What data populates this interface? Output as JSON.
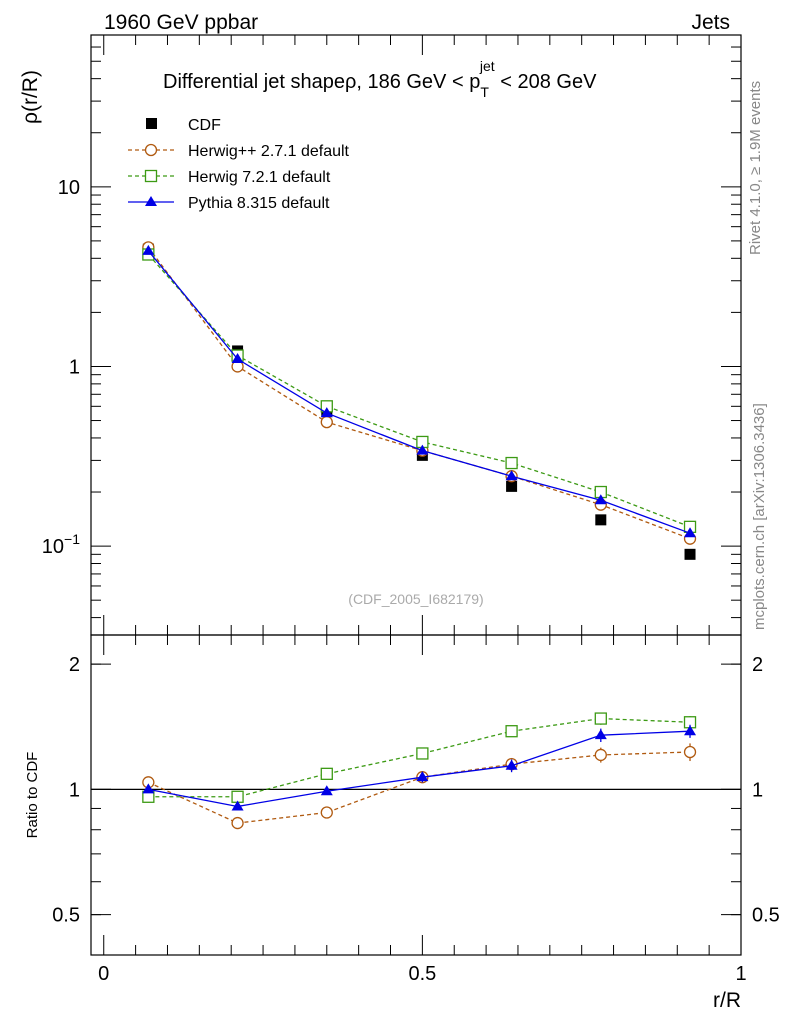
{
  "header": {
    "left": "1960 GeV ppbar",
    "right": "Jets"
  },
  "side": {
    "rivet": "Rivet 4.1.0, ≥ 1.9M events",
    "mcplots": "mcplots.cern.ch [arXiv:1306.3436]"
  },
  "chart_data": [
    {
      "type": "line",
      "panel": "main",
      "title": "Differential jet shapeρ, 186 GeV < p",
      "title_sup": "jet",
      "title_sub": "T",
      "title_tail": " < 208 GeV",
      "ylabel": "ρ(r/R)",
      "yscale": "log",
      "ylim": [
        0.032,
        70
      ],
      "xlim": [
        -0.02,
        1.0
      ],
      "watermark": "(CDF_2005_I682179)",
      "yticks": [
        {
          "value": 0.1,
          "base": "10",
          "exp": "−1"
        },
        {
          "value": 1,
          "label": "1"
        },
        {
          "value": 10,
          "label": "10"
        }
      ],
      "x": [
        0.07,
        0.21,
        0.35,
        0.5,
        0.64,
        0.78,
        0.92
      ],
      "series": [
        {
          "name": "CDF",
          "color": "#000000",
          "marker": "square-filled",
          "line": "none",
          "values": [
            4.5,
            1.22,
            0.56,
            0.32,
            0.215,
            0.14,
            0.09
          ]
        },
        {
          "name": "Herwig++ 2.7.1 default",
          "color": "#b05a10",
          "marker": "circle-open",
          "line": "dashed",
          "values": [
            4.6,
            1.0,
            0.49,
            0.34,
            0.245,
            0.17,
            0.11
          ]
        },
        {
          "name": "Herwig 7.2.1 default",
          "color": "#3c9a14",
          "marker": "square-open",
          "line": "dashed",
          "values": [
            4.2,
            1.15,
            0.6,
            0.38,
            0.29,
            0.2,
            0.128
          ]
        },
        {
          "name": "Pythia 8.315 default",
          "color": "#0000e6",
          "marker": "triangle-filled",
          "line": "solid",
          "values": [
            4.4,
            1.1,
            0.55,
            0.34,
            0.245,
            0.18,
            0.118
          ]
        }
      ]
    },
    {
      "type": "line",
      "panel": "ratio",
      "ylabel": "Ratio to CDF",
      "xlabel": "r/R",
      "yscale": "log",
      "ylim": [
        0.4,
        2.35
      ],
      "xlim": [
        -0.02,
        1.0
      ],
      "reference_line": 1,
      "yticks": [
        {
          "value": 0.5,
          "label": "0.5"
        },
        {
          "value": 1,
          "label": "1"
        },
        {
          "value": 2,
          "label": "2"
        }
      ],
      "xticks": [
        {
          "value": 0,
          "label": "0"
        },
        {
          "value": 0.5,
          "label": "0.5"
        },
        {
          "value": 1,
          "label": "1"
        }
      ],
      "x": [
        0.07,
        0.21,
        0.35,
        0.5,
        0.64,
        0.78,
        0.92
      ],
      "series": [
        {
          "name": "Herwig++ 2.7.1 default",
          "color": "#b05a10",
          "marker": "circle-open",
          "line": "dashed",
          "values": [
            1.04,
            0.83,
            0.88,
            1.07,
            1.15,
            1.21,
            1.23
          ],
          "errors": [
            0.02,
            0.01,
            0.02,
            0.03,
            0.04,
            0.05,
            0.06
          ]
        },
        {
          "name": "Herwig 7.2.1 default",
          "color": "#3c9a14",
          "marker": "square-open",
          "line": "dashed",
          "values": [
            0.96,
            0.96,
            1.09,
            1.22,
            1.38,
            1.48,
            1.45
          ],
          "errors": [
            0.01,
            0.01,
            0.02,
            0.03,
            0.04,
            0.05,
            0.05
          ]
        },
        {
          "name": "Pythia 8.315 default",
          "color": "#0000e6",
          "marker": "triangle-filled",
          "line": "solid",
          "values": [
            1.0,
            0.91,
            0.99,
            1.07,
            1.14,
            1.35,
            1.38
          ],
          "errors": [
            0.01,
            0.01,
            0.02,
            0.03,
            0.04,
            0.05,
            0.05
          ]
        }
      ]
    }
  ]
}
